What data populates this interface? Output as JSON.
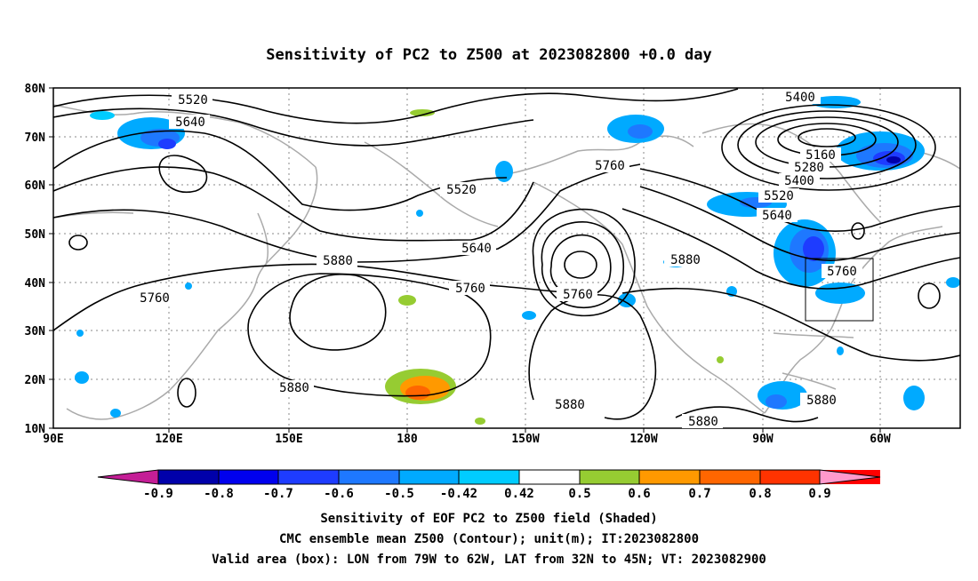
{
  "title": "Sensitivity of PC2 to Z500 at 2023082800 +0.0 day",
  "map": {
    "lon_range": [
      "90E",
      "48W"
    ],
    "lat_range": [
      "10N",
      "80N"
    ],
    "lon_ticks": [
      "90E",
      "120E",
      "150E",
      "180",
      "150W",
      "120W",
      "90W",
      "60W"
    ],
    "lat_ticks": [
      "80N",
      "70N",
      "60N",
      "50N",
      "40N",
      "30N",
      "20N",
      "10N"
    ],
    "contour_labels": [
      "5520",
      "5640",
      "5520",
      "5760",
      "5640",
      "5880",
      "5760",
      "5760",
      "5760",
      "5880",
      "5880",
      "5880",
      "5880",
      "5880",
      "5400",
      "5160",
      "5280",
      "5400",
      "5520",
      "5640",
      "5760"
    ],
    "valid_box": {
      "lon": [
        "79W",
        "62W"
      ],
      "lat": [
        "32N",
        "45N"
      ]
    }
  },
  "colorbar": {
    "labels": [
      "-0.9",
      "-0.8",
      "-0.7",
      "-0.6",
      "-0.5",
      "-0.42",
      "0.42",
      "0.5",
      "0.6",
      "0.7",
      "0.8",
      "0.9"
    ],
    "colors": [
      "#c41e96",
      "#0000aa",
      "#0000ee",
      "#1e3cff",
      "#1e78ff",
      "#00aaff",
      "#00ccff",
      "#ffffff",
      "#96cc32",
      "#ff9900",
      "#ff6600",
      "#ff3300",
      "#ff0000",
      "#ff99cc"
    ]
  },
  "footer": {
    "line1": "Sensitivity of EOF PC2 to Z500 field (Shaded)",
    "line2": "CMC ensemble mean Z500 (Contour); unit(m); IT:2023082800",
    "line3": "Valid area (box): LON from 79W to 62W, LAT from 32N to 45N; VT: 2023082900"
  }
}
